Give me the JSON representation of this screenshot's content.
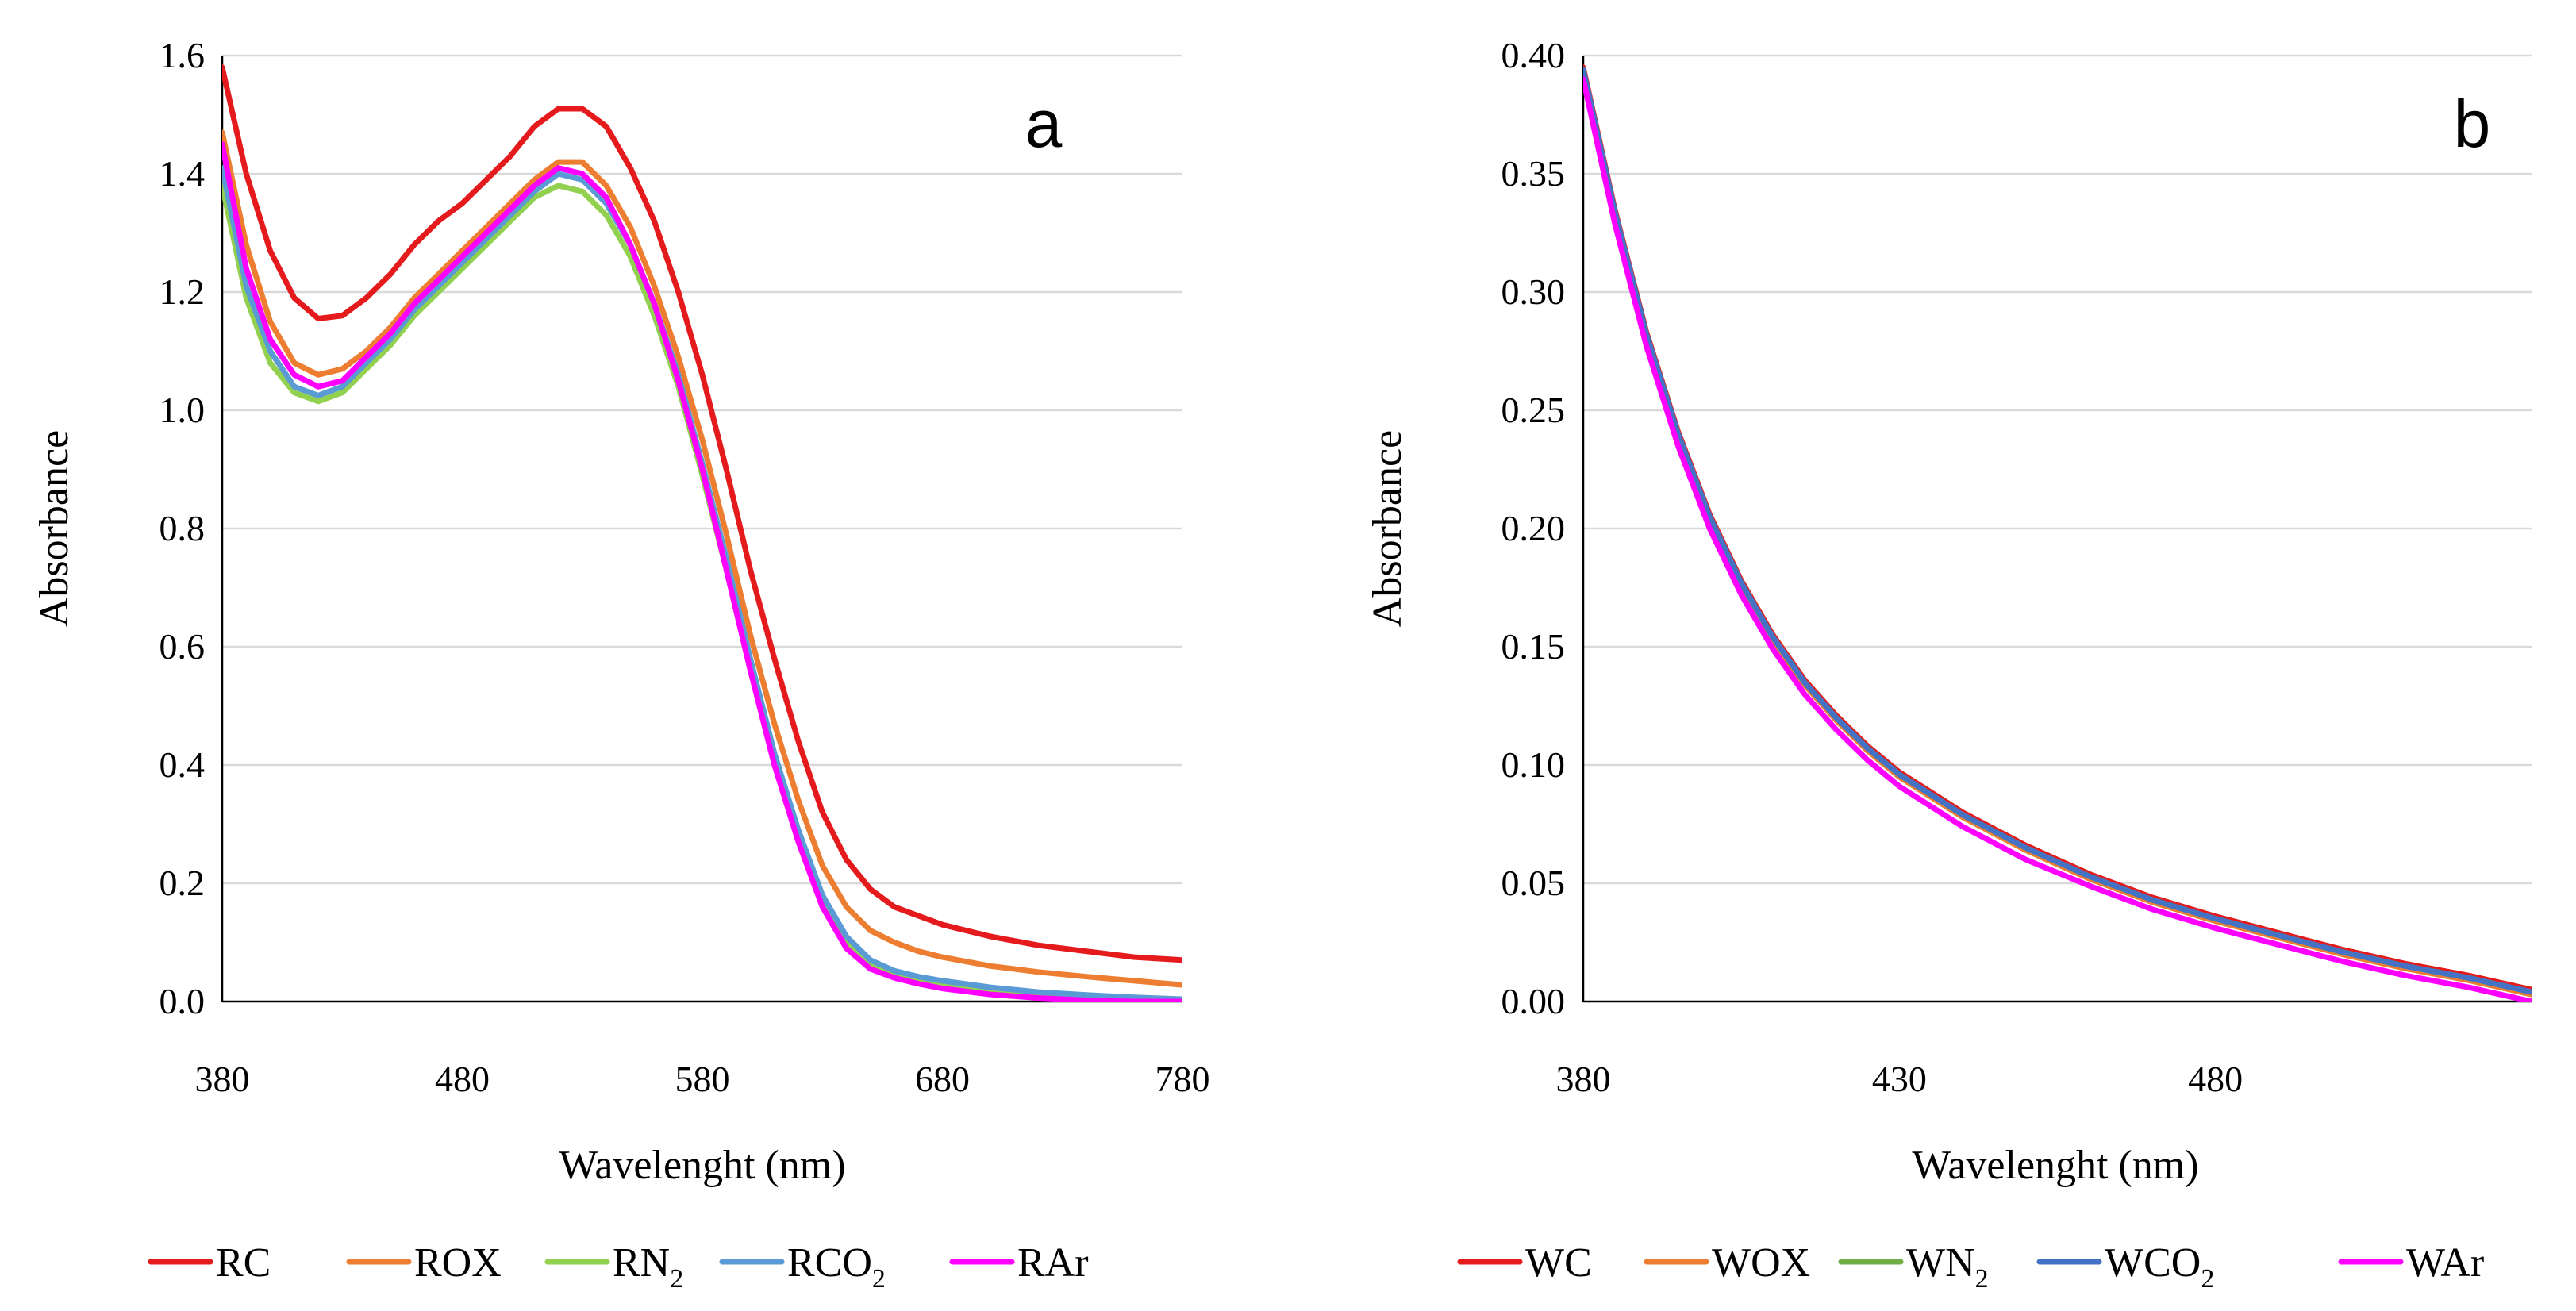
{
  "chart_data": [
    {
      "id": "a",
      "type": "line",
      "panel_label": "a",
      "xlabel": "Wavelenght (nm)",
      "ylabel": "Absorbance",
      "xlim": [
        380,
        780
      ],
      "ylim": [
        0,
        1.6
      ],
      "xticks": [
        380,
        480,
        580,
        680,
        780
      ],
      "yticks": [
        0,
        0.2,
        0.4,
        0.6,
        0.8,
        1.0,
        1.2,
        1.4,
        1.6
      ],
      "y_decimals": 1,
      "grid": true,
      "legend_position": "bottom",
      "series": [
        {
          "name": "RC",
          "label_main": "RC",
          "label_sub": "",
          "color": "#e41a1c",
          "x": [
            380,
            390,
            400,
            410,
            420,
            430,
            440,
            450,
            460,
            470,
            480,
            490,
            500,
            510,
            520,
            530,
            540,
            550,
            560,
            570,
            580,
            590,
            600,
            610,
            620,
            630,
            640,
            650,
            660,
            670,
            680,
            700,
            720,
            740,
            760,
            780
          ],
          "y": [
            1.58,
            1.4,
            1.27,
            1.19,
            1.155,
            1.16,
            1.19,
            1.23,
            1.28,
            1.32,
            1.35,
            1.39,
            1.43,
            1.48,
            1.51,
            1.51,
            1.48,
            1.41,
            1.32,
            1.2,
            1.06,
            0.9,
            0.73,
            0.58,
            0.44,
            0.32,
            0.24,
            0.19,
            0.16,
            0.145,
            0.13,
            0.11,
            0.095,
            0.085,
            0.075,
            0.07
          ]
        },
        {
          "name": "ROX",
          "label_main": "ROX",
          "label_sub": "",
          "color": "#ed7d31",
          "x": [
            380,
            390,
            400,
            410,
            420,
            430,
            440,
            450,
            460,
            470,
            480,
            490,
            500,
            510,
            520,
            530,
            540,
            550,
            560,
            570,
            580,
            590,
            600,
            610,
            620,
            630,
            640,
            650,
            660,
            670,
            680,
            700,
            720,
            740,
            760,
            780
          ],
          "y": [
            1.47,
            1.28,
            1.15,
            1.08,
            1.06,
            1.07,
            1.1,
            1.14,
            1.19,
            1.23,
            1.27,
            1.31,
            1.35,
            1.39,
            1.42,
            1.42,
            1.38,
            1.31,
            1.21,
            1.09,
            0.95,
            0.79,
            0.62,
            0.47,
            0.34,
            0.23,
            0.16,
            0.12,
            0.1,
            0.085,
            0.075,
            0.06,
            0.05,
            0.042,
            0.035,
            0.028
          ]
        },
        {
          "name": "RN2",
          "label_main": "RN",
          "label_sub": "2",
          "color": "#92d050",
          "x": [
            380,
            390,
            400,
            410,
            420,
            430,
            440,
            450,
            460,
            470,
            480,
            490,
            500,
            510,
            520,
            530,
            540,
            550,
            560,
            570,
            580,
            590,
            600,
            610,
            620,
            630,
            640,
            650,
            660,
            670,
            680,
            700,
            720,
            740,
            760,
            780
          ],
          "y": [
            1.38,
            1.19,
            1.08,
            1.03,
            1.015,
            1.03,
            1.07,
            1.11,
            1.16,
            1.2,
            1.24,
            1.28,
            1.32,
            1.36,
            1.38,
            1.37,
            1.33,
            1.26,
            1.16,
            1.04,
            0.89,
            0.73,
            0.56,
            0.41,
            0.28,
            0.17,
            0.1,
            0.065,
            0.048,
            0.038,
            0.03,
            0.02,
            0.013,
            0.008,
            0.004,
            0.002
          ]
        },
        {
          "name": "RCO2",
          "label_main": "RCO",
          "label_sub": "2",
          "color": "#5b9bd5",
          "x": [
            380,
            390,
            400,
            410,
            420,
            430,
            440,
            450,
            460,
            470,
            480,
            490,
            500,
            510,
            520,
            530,
            540,
            550,
            560,
            570,
            580,
            590,
            600,
            610,
            620,
            630,
            640,
            650,
            660,
            670,
            680,
            700,
            720,
            740,
            760,
            780
          ],
          "y": [
            1.41,
            1.21,
            1.1,
            1.04,
            1.025,
            1.04,
            1.08,
            1.12,
            1.17,
            1.21,
            1.25,
            1.29,
            1.33,
            1.37,
            1.4,
            1.39,
            1.35,
            1.28,
            1.18,
            1.06,
            0.91,
            0.75,
            0.58,
            0.42,
            0.29,
            0.18,
            0.11,
            0.07,
            0.052,
            0.042,
            0.035,
            0.024,
            0.016,
            0.011,
            0.007,
            0.004
          ]
        },
        {
          "name": "RAr",
          "label_main": "RAr",
          "label_sub": "",
          "color": "#ff00ff",
          "x": [
            380,
            390,
            400,
            410,
            420,
            430,
            440,
            450,
            460,
            470,
            480,
            490,
            500,
            510,
            520,
            530,
            540,
            550,
            560,
            570,
            580,
            590,
            600,
            610,
            620,
            630,
            640,
            650,
            660,
            670,
            680,
            700,
            720,
            740,
            760,
            780
          ],
          "y": [
            1.45,
            1.24,
            1.12,
            1.06,
            1.04,
            1.05,
            1.09,
            1.13,
            1.18,
            1.22,
            1.26,
            1.3,
            1.34,
            1.38,
            1.41,
            1.4,
            1.36,
            1.28,
            1.18,
            1.05,
            0.9,
            0.73,
            0.56,
            0.4,
            0.27,
            0.16,
            0.09,
            0.055,
            0.04,
            0.03,
            0.022,
            0.012,
            0.006,
            0.002,
            0.0,
            0.0
          ]
        }
      ]
    },
    {
      "id": "b",
      "type": "line",
      "panel_label": "b",
      "xlabel": "Wavelenght (nm)",
      "ylabel": "Absorbance",
      "xlim": [
        380,
        530
      ],
      "ylim": [
        0,
        0.4
      ],
      "xticks": [
        380,
        430,
        480
      ],
      "yticks": [
        0,
        0.05,
        0.1,
        0.15,
        0.2,
        0.25,
        0.3,
        0.35,
        0.4
      ],
      "y_decimals": 2,
      "grid": true,
      "legend_position": "bottom",
      "series": [
        {
          "name": "WC",
          "label_main": "WC",
          "label_sub": "",
          "color": "#e41a1c",
          "x": [
            380,
            385,
            390,
            395,
            400,
            405,
            410,
            415,
            420,
            425,
            430,
            440,
            450,
            460,
            470,
            480,
            490,
            500,
            510,
            520,
            530
          ],
          "y": [
            0.395,
            0.335,
            0.283,
            0.241,
            0.206,
            0.178,
            0.155,
            0.136,
            0.121,
            0.108,
            0.097,
            0.08,
            0.066,
            0.054,
            0.044,
            0.036,
            0.029,
            0.022,
            0.016,
            0.011,
            0.005
          ]
        },
        {
          "name": "WOX",
          "label_main": "WOX",
          "label_sub": "",
          "color": "#ed7d31",
          "x": [
            380,
            385,
            390,
            395,
            400,
            405,
            410,
            415,
            420,
            425,
            430,
            440,
            450,
            460,
            470,
            480,
            490,
            500,
            510,
            520,
            530
          ],
          "y": [
            0.393,
            0.333,
            0.281,
            0.239,
            0.204,
            0.176,
            0.153,
            0.134,
            0.119,
            0.106,
            0.095,
            0.078,
            0.064,
            0.052,
            0.042,
            0.034,
            0.027,
            0.02,
            0.014,
            0.009,
            0.003
          ]
        },
        {
          "name": "WN2",
          "label_main": "WN",
          "label_sub": "2",
          "color": "#70ad47",
          "x": [
            380,
            385,
            390,
            395,
            400,
            405,
            410,
            415,
            420,
            425,
            430,
            440,
            450,
            460,
            470,
            480,
            490,
            500,
            510,
            520,
            530
          ],
          "y": [
            0.394,
            0.334,
            0.282,
            0.24,
            0.205,
            0.177,
            0.154,
            0.135,
            0.12,
            0.107,
            0.096,
            0.079,
            0.065,
            0.053,
            0.043,
            0.035,
            0.028,
            0.021,
            0.015,
            0.01,
            0.004
          ]
        },
        {
          "name": "WCO2",
          "label_main": "WCO",
          "label_sub": "2",
          "color": "#4472c4",
          "x": [
            380,
            385,
            390,
            395,
            400,
            405,
            410,
            415,
            420,
            425,
            430,
            440,
            450,
            460,
            470,
            480,
            490,
            500,
            510,
            520,
            530
          ],
          "y": [
            0.394,
            0.334,
            0.282,
            0.24,
            0.205,
            0.177,
            0.154,
            0.135,
            0.12,
            0.107,
            0.096,
            0.079,
            0.065,
            0.053,
            0.043,
            0.035,
            0.028,
            0.021,
            0.015,
            0.01,
            0.004
          ]
        },
        {
          "name": "WAr",
          "label_main": "WAr",
          "label_sub": "",
          "color": "#ff00ff",
          "x": [
            380,
            385,
            390,
            395,
            400,
            405,
            410,
            415,
            420,
            425,
            430,
            440,
            450,
            460,
            470,
            480,
            490,
            500,
            510,
            520,
            530
          ],
          "y": [
            0.39,
            0.329,
            0.277,
            0.235,
            0.2,
            0.172,
            0.149,
            0.13,
            0.115,
            0.102,
            0.091,
            0.074,
            0.06,
            0.049,
            0.039,
            0.031,
            0.024,
            0.017,
            0.011,
            0.006,
            0.0
          ]
        }
      ]
    }
  ]
}
